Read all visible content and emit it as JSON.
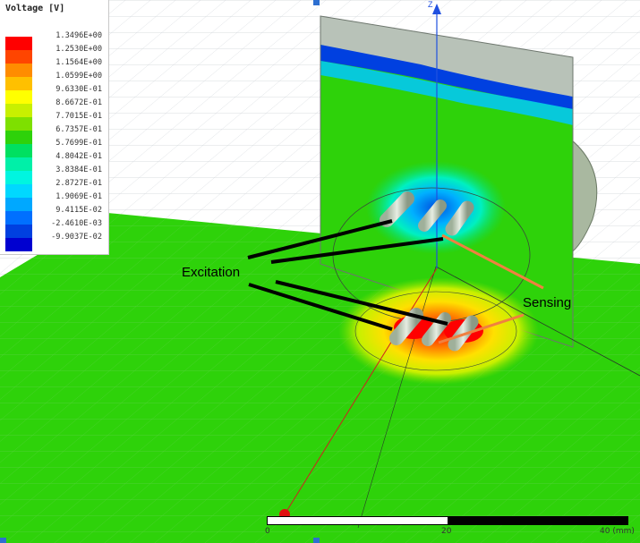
{
  "legend": {
    "title": "Voltage [V]",
    "entries": [
      {
        "label": "1.3496E+00",
        "color": "#ff0000"
      },
      {
        "label": "1.2530E+00",
        "color": "#ff4500"
      },
      {
        "label": "1.1564E+00",
        "color": "#ff8c00"
      },
      {
        "label": "1.0599E+00",
        "color": "#ffc000"
      },
      {
        "label": "9.6330E-01",
        "color": "#ffff00"
      },
      {
        "label": "8.6672E-01",
        "color": "#c8f000"
      },
      {
        "label": "7.7015E-01",
        "color": "#7ee000"
      },
      {
        "label": "6.7357E-01",
        "color": "#2ed20a"
      },
      {
        "label": "5.7699E-01",
        "color": "#00e060"
      },
      {
        "label": "4.8042E-01",
        "color": "#00f0a8"
      },
      {
        "label": "3.8384E-01",
        "color": "#00f5e0"
      },
      {
        "label": "2.8727E-01",
        "color": "#00d8ff"
      },
      {
        "label": "1.9069E-01",
        "color": "#00a8ff"
      },
      {
        "label": "9.4115E-02",
        "color": "#0070ff"
      },
      {
        "label": "-2.4610E-03",
        "color": "#0040e0"
      },
      {
        "label": "-9.9037E-02",
        "color": "#0000d0"
      }
    ]
  },
  "annotations": {
    "excitation": "Excitation",
    "sensing": "Sensing",
    "axis_z": "Z"
  },
  "scale_bar": {
    "labels": [
      "0",
      "20",
      "40 (mm)"
    ]
  }
}
